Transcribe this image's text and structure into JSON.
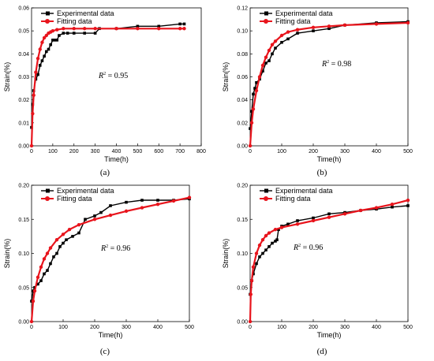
{
  "chart_data": [
    {
      "type": "scatter",
      "panel_label": "(a)",
      "xlabel": "Time(h)",
      "ylabel": "Strain(%)",
      "xlim": [
        0,
        800
      ],
      "ylim": [
        0,
        0.06
      ],
      "xticks": [
        "0",
        "100",
        "200",
        "300",
        "400",
        "500",
        "600",
        "700",
        "800"
      ],
      "yticks": [
        "0.00",
        "0.01",
        "0.02",
        "0.03",
        "0.04",
        "0.05",
        "0.06"
      ],
      "annotation": {
        "prefix": "R",
        "sup": "2",
        "text": " = 0.95"
      },
      "legend": {
        "position": "top-right"
      },
      "series": [
        {
          "name": "Experimental data",
          "color": "#000000",
          "marker": "square",
          "x": [
            0,
            5,
            10,
            20,
            30,
            40,
            50,
            60,
            70,
            80,
            90,
            100,
            110,
            120,
            130,
            150,
            170,
            200,
            250,
            300,
            320,
            400,
            500,
            600,
            700,
            720
          ],
          "y": [
            0.008,
            0.018,
            0.024,
            0.029,
            0.031,
            0.035,
            0.037,
            0.039,
            0.041,
            0.042,
            0.044,
            0.046,
            0.046,
            0.046,
            0.048,
            0.049,
            0.049,
            0.049,
            0.049,
            0.049,
            0.051,
            0.051,
            0.052,
            0.052,
            0.053,
            0.053
          ]
        },
        {
          "name": "Fitting data",
          "color": "#e8141c",
          "marker": "circle",
          "x": [
            0,
            5,
            10,
            20,
            30,
            40,
            50,
            60,
            70,
            80,
            90,
            100,
            120,
            150,
            200,
            250,
            300,
            400,
            500,
            600,
            700,
            720
          ],
          "y": [
            0.0,
            0.014,
            0.022,
            0.032,
            0.038,
            0.042,
            0.045,
            0.047,
            0.048,
            0.049,
            0.0495,
            0.05,
            0.0505,
            0.051,
            0.051,
            0.051,
            0.051,
            0.051,
            0.051,
            0.051,
            0.051,
            0.051
          ]
        }
      ]
    },
    {
      "type": "scatter",
      "panel_label": "(b)",
      "xlabel": "Time(h)",
      "ylabel": "Strain(%)",
      "xlim": [
        0,
        500
      ],
      "ylim": [
        0,
        0.12
      ],
      "xticks": [
        "0",
        "100",
        "200",
        "300",
        "400",
        "500"
      ],
      "yticks": [
        "0.00",
        "0.02",
        "0.04",
        "0.06",
        "0.08",
        "0.10",
        "0.12"
      ],
      "annotation": {
        "prefix": "R",
        "sup": "2",
        "text": " = 0.98"
      },
      "legend": {
        "position": "top-right"
      },
      "series": [
        {
          "name": "Experimental data",
          "color": "#000000",
          "marker": "square",
          "x": [
            0,
            5,
            10,
            15,
            20,
            30,
            40,
            50,
            60,
            70,
            80,
            100,
            120,
            150,
            200,
            250,
            300,
            400,
            500
          ],
          "y": [
            0.015,
            0.03,
            0.045,
            0.05,
            0.055,
            0.058,
            0.065,
            0.072,
            0.074,
            0.08,
            0.085,
            0.09,
            0.093,
            0.098,
            0.1,
            0.102,
            0.105,
            0.107,
            0.108
          ]
        },
        {
          "name": "Fitting data",
          "color": "#e8141c",
          "marker": "circle",
          "x": [
            0,
            5,
            10,
            20,
            30,
            40,
            50,
            60,
            70,
            80,
            100,
            120,
            150,
            200,
            250,
            300,
            400,
            500
          ],
          "y": [
            0.0,
            0.02,
            0.032,
            0.048,
            0.06,
            0.07,
            0.077,
            0.083,
            0.088,
            0.091,
            0.096,
            0.099,
            0.101,
            0.103,
            0.104,
            0.105,
            0.106,
            0.107
          ]
        }
      ]
    },
    {
      "type": "scatter",
      "panel_label": "(c)",
      "xlabel": "Time(h)",
      "ylabel": "Strain(%)",
      "xlim": [
        0,
        500
      ],
      "ylim": [
        0,
        0.2
      ],
      "xticks": [
        "0",
        "100",
        "200",
        "300",
        "400",
        "500"
      ],
      "yticks": [
        "0.00",
        "0.05",
        "0.10",
        "0.15",
        "0.20"
      ],
      "annotation": {
        "prefix": "R",
        "sup": "2",
        "text": " = 0.96"
      },
      "legend": {
        "position": "top-right"
      },
      "series": [
        {
          "name": "Experimental data",
          "color": "#000000",
          "marker": "square",
          "x": [
            0,
            5,
            10,
            20,
            30,
            40,
            50,
            60,
            70,
            80,
            90,
            100,
            110,
            130,
            150,
            170,
            200,
            220,
            250,
            300,
            350,
            400,
            450,
            500
          ],
          "y": [
            0.03,
            0.045,
            0.05,
            0.055,
            0.06,
            0.07,
            0.075,
            0.085,
            0.095,
            0.1,
            0.11,
            0.115,
            0.12,
            0.125,
            0.13,
            0.15,
            0.155,
            0.16,
            0.17,
            0.175,
            0.178,
            0.178,
            0.178,
            0.18
          ]
        },
        {
          "name": "Fitting data",
          "color": "#e8141c",
          "marker": "circle",
          "x": [
            0,
            5,
            10,
            20,
            30,
            40,
            50,
            60,
            80,
            100,
            120,
            150,
            200,
            250,
            300,
            350,
            400,
            450,
            500
          ],
          "y": [
            0.0,
            0.03,
            0.045,
            0.065,
            0.08,
            0.092,
            0.1,
            0.108,
            0.12,
            0.128,
            0.135,
            0.142,
            0.15,
            0.156,
            0.162,
            0.167,
            0.172,
            0.177,
            0.182
          ]
        }
      ]
    },
    {
      "type": "scatter",
      "panel_label": "(d)",
      "xlabel": "Time(h)",
      "ylabel": "Strain(%)",
      "xlim": [
        0,
        500
      ],
      "ylim": [
        0,
        0.2
      ],
      "xticks": [
        "0",
        "100",
        "200",
        "300",
        "400",
        "500"
      ],
      "yticks": [
        "0.00",
        "0.05",
        "0.10",
        "0.15",
        "0.20"
      ],
      "annotation": {
        "prefix": "R",
        "sup": "2",
        "text": " = 0.96"
      },
      "legend": {
        "position": "top-right"
      },
      "series": [
        {
          "name": "Experimental data",
          "color": "#000000",
          "marker": "square",
          "x": [
            0,
            5,
            10,
            20,
            30,
            40,
            50,
            60,
            70,
            80,
            85,
            90,
            100,
            120,
            150,
            200,
            250,
            300,
            350,
            400,
            450,
            500
          ],
          "y": [
            0.04,
            0.06,
            0.07,
            0.085,
            0.095,
            0.1,
            0.105,
            0.11,
            0.115,
            0.118,
            0.12,
            0.135,
            0.14,
            0.143,
            0.148,
            0.152,
            0.158,
            0.16,
            0.163,
            0.165,
            0.168,
            0.17
          ]
        },
        {
          "name": "Fitting data",
          "color": "#e8141c",
          "marker": "circle",
          "x": [
            0,
            2,
            5,
            10,
            20,
            30,
            40,
            50,
            60,
            80,
            100,
            150,
            200,
            250,
            300,
            350,
            400,
            450,
            500
          ],
          "y": [
            0.0,
            0.04,
            0.06,
            0.08,
            0.1,
            0.112,
            0.12,
            0.126,
            0.13,
            0.135,
            0.138,
            0.143,
            0.148,
            0.153,
            0.158,
            0.163,
            0.167,
            0.172,
            0.178
          ]
        }
      ]
    }
  ]
}
